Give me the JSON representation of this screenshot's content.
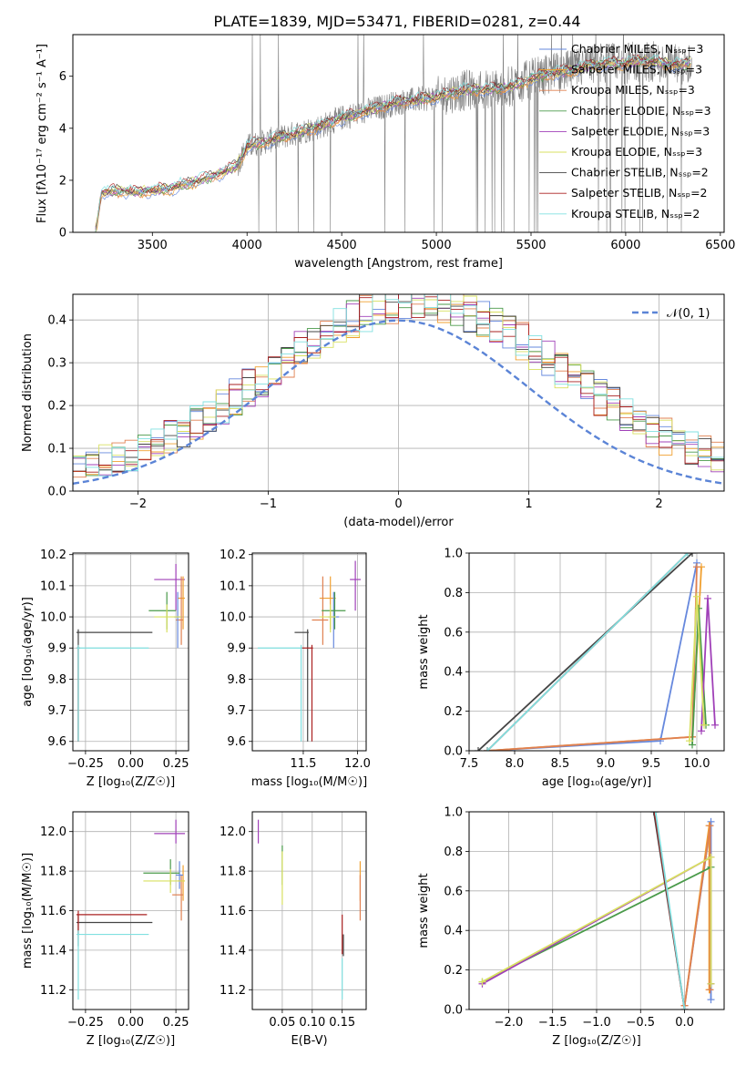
{
  "title": "PLATE=1839, MJD=53471, FIBERID=0281, z=0.44",
  "colors": {
    "Chabrier MILES": "#6688dd",
    "Salpeter MILES": "#f0a030",
    "Kroupa MILES": "#e08050",
    "Chabrier ELODIE": "#4a9a4a",
    "Salpeter ELODIE": "#a040b8",
    "Kroupa ELODIE": "#d8e060",
    "Chabrier STELIB": "#444444",
    "Salpeter STELIB": "#aa2020",
    "Kroupa STELIB": "#80e0e0",
    "data": "#808080",
    "normal": "#5b84d6"
  },
  "chart_data": [
    {
      "id": "spectrum",
      "type": "line",
      "xlabel": "wavelength [Angstrom, rest frame]",
      "ylabel": "Flux [f$_\\lambda$10$^{-17}$ erg cm$^{-2}$ s$^{-1}$ A$^{-1}$]",
      "ylabel_display": "Flux [fλ10⁻¹⁷ erg cm⁻² s⁻¹ A⁻¹]",
      "xlim": [
        3080,
        6520
      ],
      "ylim": [
        0,
        7.6
      ],
      "xticks": [
        3500,
        4000,
        4500,
        5000,
        5500,
        6000,
        6500
      ],
      "yticks": [
        0,
        2,
        4,
        6
      ],
      "legend": [
        "Chabrier MILES, N_SSP=3",
        "Salpeter MILES, N_SSP=3",
        "Kroupa MILES, N_SSP=3",
        "Chabrier ELODIE, N_SSP=3",
        "Salpeter ELODIE, N_SSP=3",
        "Kroupa ELODIE, N_SSP=3",
        "Chabrier STELIB, N_SSP=2",
        "Salpeter STELIB, N_SSP=2",
        "Kroupa STELIB, N_SSP=2"
      ],
      "legend_display": [
        "Chabrier MILES, Nₛₛₚ=3",
        "Salpeter MILES, Nₛₛₚ=3",
        "Kroupa MILES, Nₛₛₚ=3",
        "Chabrier ELODIE, Nₛₛₚ=3",
        "Salpeter ELODIE, Nₛₛₚ=3",
        "Kroupa ELODIE, Nₛₛₚ=3",
        "Chabrier STELIB, Nₛₛₚ=2",
        "Salpeter STELIB, Nₛₛₚ=2",
        "Kroupa STELIB, Nₛₛₚ=2"
      ],
      "legend_placement": "top-right",
      "continuum_x": [
        3200,
        3230,
        3300,
        3400,
        3500,
        3600,
        3700,
        3800,
        3900,
        3950,
        4000,
        4100,
        4200,
        4300,
        4400,
        4500,
        4600,
        4700,
        4800,
        4900,
        5000,
        5100,
        5200,
        5300,
        5400,
        5500,
        5600,
        5700,
        5800,
        5900,
        6000,
        6100,
        6200,
        6300,
        6350
      ],
      "continuum_y": [
        0.0,
        1.5,
        1.6,
        1.55,
        1.6,
        1.7,
        1.9,
        2.1,
        2.4,
        2.6,
        3.3,
        3.5,
        3.7,
        3.9,
        4.1,
        4.4,
        4.6,
        4.8,
        5.0,
        5.1,
        5.2,
        5.4,
        5.5,
        5.5,
        5.6,
        5.9,
        6.1,
        6.2,
        6.4,
        6.5,
        6.5,
        6.6,
        6.5,
        6.4,
        6.6
      ],
      "data_range_x": [
        3200,
        6350
      ]
    },
    {
      "id": "residuals",
      "type": "line",
      "xlabel": "(data-model)/error",
      "ylabel": "Normed distribution",
      "xlim": [
        -2.5,
        2.5
      ],
      "ylim": [
        0,
        0.46
      ],
      "xticks": [
        -2,
        -1,
        0,
        1,
        2
      ],
      "xtick_labels": [
        "−2",
        "−1",
        "0",
        "1",
        "2"
      ],
      "yticks": [
        0.0,
        0.1,
        0.2,
        0.3,
        0.4
      ],
      "ytick_labels": [
        "0.0",
        "0.1",
        "0.2",
        "0.3",
        "0.4"
      ],
      "grid": true,
      "legend": [
        "𝒩(0, 1)"
      ],
      "legend_placement": "top-right",
      "bin_width": 0.1,
      "normal_mean": 0,
      "normal_sigma": 1
    },
    {
      "id": "age_vs_Z",
      "type": "scatter",
      "xlabel": "Z [log₁₀(Z/Z☉)]",
      "ylabel": "age  [log₁₀(age/yr)]",
      "xlim": [
        -0.32,
        0.32
      ],
      "ylim": [
        9.57,
        10.205
      ],
      "xticks": [
        -0.25,
        0.0,
        0.25
      ],
      "xtick_labels": [
        "−0.25",
        "0.00",
        "0.25"
      ],
      "yticks": [
        9.6,
        9.7,
        9.8,
        9.9,
        10.0,
        10.1,
        10.2
      ],
      "ytick_labels": [
        "9.6",
        "9.7",
        "9.8",
        "9.9",
        "10.0",
        "10.1",
        "10.2"
      ],
      "grid": true,
      "points": [
        {
          "series": "Salpeter ELODIE",
          "x": 0.25,
          "y": 10.12,
          "xerr": [
            0.12,
            0.05
          ],
          "yerr": [
            0.1,
            0.05
          ]
        },
        {
          "series": "Salpeter MILES",
          "x": 0.29,
          "y": 10.06,
          "xerr": [
            0.03,
            0.01
          ],
          "yerr": [
            0.1,
            0.07
          ]
        },
        {
          "series": "Kroupa MILES",
          "x": 0.28,
          "y": 9.99,
          "xerr": [
            0.03,
            0.01
          ],
          "yerr": [
            0.08,
            0.14
          ]
        },
        {
          "series": "Chabrier MILES",
          "x": 0.26,
          "y": 10.0,
          "xerr": [
            0.02,
            0.02
          ],
          "yerr": [
            0.1,
            0.08
          ]
        },
        {
          "series": "Chabrier ELODIE",
          "x": 0.2,
          "y": 10.02,
          "xerr": [
            0.1,
            0.05
          ],
          "yerr": [
            0.06,
            0.06
          ]
        },
        {
          "series": "Kroupa ELODIE",
          "x": 0.2,
          "y": 10.0,
          "xerr": [
            0.07,
            0.08
          ],
          "yerr": [
            0.05,
            0.04
          ]
        },
        {
          "series": "Chabrier STELIB",
          "x": -0.29,
          "y": 9.95,
          "xerr": [
            0.01,
            0.41
          ],
          "yerr": [
            0.35,
            0.01
          ]
        },
        {
          "series": "Salpeter STELIB",
          "x": -0.29,
          "y": 9.9,
          "xerr": [
            0.01,
            0.01
          ],
          "yerr": [
            0.3,
            0.01
          ]
        },
        {
          "series": "Kroupa STELIB",
          "x": -0.29,
          "y": 9.9,
          "xerr": [
            0.01,
            0.39
          ],
          "yerr": [
            0.3,
            0.01
          ]
        }
      ]
    },
    {
      "id": "age_vs_mass",
      "type": "scatter",
      "xlabel": "mass [log₁₀(M/M☉)]",
      "ylabel": "",
      "xlim": [
        11.03,
        12.08
      ],
      "ylim": [
        9.57,
        10.205
      ],
      "xticks": [
        11.5,
        12.0
      ],
      "xtick_labels": [
        "11.5",
        "12.0"
      ],
      "yticks": [
        9.6,
        9.7,
        9.8,
        9.9,
        10.0,
        10.1,
        10.2
      ],
      "ytick_labels": [
        "9.6",
        "9.7",
        "9.8",
        "9.9",
        "10.0",
        "10.1",
        "10.2"
      ],
      "grid": true,
      "points": [
        {
          "series": "Salpeter ELODIE",
          "x": 11.98,
          "y": 10.12,
          "xerr": [
            0.05,
            0.05
          ],
          "yerr": [
            0.1,
            0.06
          ]
        },
        {
          "series": "Salpeter MILES",
          "x": 11.75,
          "y": 10.06,
          "xerr": [
            0.1,
            0.05
          ],
          "yerr": [
            0.1,
            0.07
          ]
        },
        {
          "series": "Kroupa MILES",
          "x": 11.68,
          "y": 9.99,
          "xerr": [
            0.1,
            0.05
          ],
          "yerr": [
            0.08,
            0.14
          ]
        },
        {
          "series": "Chabrier MILES",
          "x": 11.78,
          "y": 10.0,
          "xerr": [
            0.05,
            0.05
          ],
          "yerr": [
            0.1,
            0.08
          ]
        },
        {
          "series": "Chabrier ELODIE",
          "x": 11.79,
          "y": 10.02,
          "xerr": [
            0.12,
            0.1
          ],
          "yerr": [
            0.06,
            0.06
          ]
        },
        {
          "series": "Kroupa ELODIE",
          "x": 11.75,
          "y": 10.0,
          "xerr": [
            0.1,
            0.05
          ],
          "yerr": [
            0.05,
            0.04
          ]
        },
        {
          "series": "Chabrier STELIB",
          "x": 11.54,
          "y": 9.95,
          "xerr": [
            0.12,
            0.01
          ],
          "yerr": [
            0.35,
            0.01
          ]
        },
        {
          "series": "Salpeter STELIB",
          "x": 11.58,
          "y": 9.9,
          "xerr": [
            0.1,
            0.01
          ],
          "yerr": [
            0.3,
            0.01
          ]
        },
        {
          "series": "Kroupa STELIB",
          "x": 11.48,
          "y": 9.9,
          "xerr": [
            0.4,
            0.01
          ],
          "yerr": [
            0.3,
            0.01
          ]
        }
      ]
    },
    {
      "id": "weight_vs_age",
      "type": "line",
      "xlabel": "age  [log₁₀(age/yr)]",
      "ylabel": "mass weight",
      "xlim": [
        7.5,
        10.3
      ],
      "ylim": [
        0,
        1.0
      ],
      "xticks": [
        7.5,
        8.0,
        8.5,
        9.0,
        9.5,
        10.0
      ],
      "xtick_labels": [
        "7.5",
        "8.0",
        "8.5",
        "9.0",
        "9.5",
        "10.0"
      ],
      "yticks": [
        0.0,
        0.2,
        0.4,
        0.6,
        0.8,
        1.0
      ],
      "ytick_labels": [
        "0.0",
        "0.2",
        "0.4",
        "0.6",
        "0.8",
        "1.0"
      ],
      "grid": true,
      "series": [
        {
          "name": "Chabrier MILES",
          "x": [
            7.7,
            9.6,
            10.0
          ],
          "y": [
            0.0,
            0.05,
            0.95
          ]
        },
        {
          "name": "Salpeter MILES",
          "x": [
            7.7,
            9.95,
            10.05
          ],
          "y": [
            0.0,
            0.07,
            0.93
          ]
        },
        {
          "name": "Kroupa MILES",
          "x": [
            7.7,
            9.95,
            10.0
          ],
          "y": [
            0.0,
            0.07,
            0.93
          ]
        },
        {
          "name": "Chabrier ELODIE",
          "x": [
            9.95,
            10.02,
            10.1
          ],
          "y": [
            0.03,
            0.72,
            0.13
          ]
        },
        {
          "name": "Salpeter ELODIE",
          "x": [
            10.05,
            10.12,
            10.2
          ],
          "y": [
            0.1,
            0.77,
            0.13
          ]
        },
        {
          "name": "Kroupa ELODIE",
          "x": [
            9.92,
            10.0,
            10.08
          ],
          "y": [
            0.05,
            0.78,
            0.13
          ]
        },
        {
          "name": "Chabrier STELIB",
          "x": [
            7.6,
            9.95
          ],
          "y": [
            0.0,
            1.0
          ]
        },
        {
          "name": "Salpeter STELIB",
          "x": [
            7.7,
            9.9
          ],
          "y": [
            0.0,
            1.0
          ]
        },
        {
          "name": "Kroupa STELIB",
          "x": [
            7.7,
            9.9
          ],
          "y": [
            0.0,
            1.0
          ]
        }
      ]
    },
    {
      "id": "mass_vs_Z",
      "type": "scatter",
      "xlabel": "Z [log₁₀(Z/Z☉)]",
      "ylabel": "mass [log₁₀(M/M☉)]",
      "xlim": [
        -0.32,
        0.32
      ],
      "ylim": [
        11.1,
        12.1
      ],
      "xticks": [
        -0.25,
        0.0,
        0.25
      ],
      "xtick_labels": [
        "−0.25",
        "0.00",
        "0.25"
      ],
      "yticks": [
        11.2,
        11.4,
        11.6,
        11.8,
        12.0
      ],
      "ytick_labels": [
        "11.2",
        "11.4",
        "11.6",
        "11.8",
        "12.0"
      ],
      "grid": true,
      "points": [
        {
          "series": "Salpeter ELODIE",
          "x": 0.25,
          "y": 11.99,
          "xerr": [
            0.12,
            0.05
          ],
          "yerr": [
            0.05,
            0.07
          ]
        },
        {
          "series": "Salpeter MILES",
          "x": 0.29,
          "y": 11.75,
          "xerr": [
            0.03,
            0.01
          ],
          "yerr": [
            0.1,
            0.08
          ]
        },
        {
          "series": "Kroupa MILES",
          "x": 0.28,
          "y": 11.68,
          "xerr": [
            0.05,
            0.01
          ],
          "yerr": [
            0.13,
            0.1
          ]
        },
        {
          "series": "Chabrier MILES",
          "x": 0.27,
          "y": 11.78,
          "xerr": [
            0.02,
            0.02
          ],
          "yerr": [
            0.07,
            0.07
          ]
        },
        {
          "series": "Chabrier ELODIE",
          "x": 0.22,
          "y": 11.79,
          "xerr": [
            0.15,
            0.05
          ],
          "yerr": [
            0.06,
            0.07
          ]
        },
        {
          "series": "Kroupa ELODIE",
          "x": 0.22,
          "y": 11.75,
          "xerr": [
            0.15,
            0.08
          ],
          "yerr": [
            0.06,
            0.06
          ]
        },
        {
          "series": "Chabrier STELIB",
          "x": -0.29,
          "y": 11.54,
          "xerr": [
            0.01,
            0.41
          ],
          "yerr": [
            0.12,
            0.04
          ]
        },
        {
          "series": "Salpeter STELIB",
          "x": -0.29,
          "y": 11.58,
          "xerr": [
            0.01,
            0.38
          ],
          "yerr": [
            0.1,
            0.02
          ]
        },
        {
          "series": "Kroupa STELIB",
          "x": -0.29,
          "y": 11.48,
          "xerr": [
            0.01,
            0.39
          ],
          "yerr": [
            0.33,
            0.02
          ]
        }
      ]
    },
    {
      "id": "mass_vs_EBV",
      "type": "scatter",
      "xlabel": "E(B-V)",
      "ylabel": "",
      "xlim": [
        0.0,
        0.19
      ],
      "ylim": [
        11.1,
        12.1
      ],
      "xticks": [
        0.05,
        0.1,
        0.15
      ],
      "xtick_labels": [
        "0.05",
        "0.10",
        "0.15"
      ],
      "yticks": [
        11.2,
        11.4,
        11.6,
        11.8,
        12.0
      ],
      "ytick_labels": [
        "11.2",
        "11.4",
        "11.6",
        "11.8",
        "12.0"
      ],
      "grid": true,
      "points": [
        {
          "series": "Salpeter ELODIE",
          "x": 0.01,
          "y": 11.99,
          "yerr": [
            0.05,
            0.07
          ]
        },
        {
          "series": "Chabrier ELODIE",
          "x": 0.05,
          "y": 11.79,
          "yerr": [
            0.06,
            0.14
          ]
        },
        {
          "series": "Kroupa ELODIE",
          "x": 0.05,
          "y": 11.75,
          "yerr": [
            0.12,
            0.15
          ]
        },
        {
          "series": "Salpeter MILES",
          "x": 0.18,
          "y": 11.75,
          "yerr": [
            0.1,
            0.1
          ]
        },
        {
          "series": "Kroupa MILES",
          "x": 0.18,
          "y": 11.68,
          "yerr": [
            0.13,
            0.1
          ]
        },
        {
          "series": "Chabrier STELIB",
          "x": 0.152,
          "y": 11.42,
          "yerr": [
            0.05,
            0.06
          ]
        },
        {
          "series": "Salpeter STELIB",
          "x": 0.15,
          "y": 11.5,
          "yerr": [
            0.12,
            0.08
          ]
        },
        {
          "series": "Kroupa STELIB",
          "x": 0.15,
          "y": 11.3,
          "yerr": [
            0.15,
            0.06
          ]
        }
      ]
    },
    {
      "id": "weight_vs_Z",
      "type": "line",
      "xlabel": "Z [log₁₀(Z/Z☉)]",
      "ylabel": "mass weight",
      "xlim": [
        -2.45,
        0.45
      ],
      "ylim": [
        0,
        1.0
      ],
      "xticks": [
        -2.0,
        -1.5,
        -1.0,
        -0.5,
        0.0
      ],
      "xtick_labels": [
        "−2.0",
        "−1.5",
        "−1.0",
        "−0.5",
        "0.0"
      ],
      "yticks": [
        0.0,
        0.2,
        0.4,
        0.6,
        0.8,
        1.0
      ],
      "ytick_labels": [
        "0.0",
        "0.2",
        "0.4",
        "0.6",
        "0.8",
        "1.0"
      ],
      "grid": true,
      "series": [
        {
          "name": "Chabrier MILES",
          "x": [
            0.0,
            0.3,
            0.3
          ],
          "y": [
            0.02,
            0.95,
            0.05
          ]
        },
        {
          "name": "Salpeter MILES",
          "x": [
            0.0,
            0.28,
            0.28
          ],
          "y": [
            0.02,
            0.93,
            0.1
          ]
        },
        {
          "name": "Kroupa MILES",
          "x": [
            0.0,
            0.29,
            0.29
          ],
          "y": [
            0.02,
            0.93,
            0.1
          ]
        },
        {
          "name": "Chabrier ELODIE",
          "x": [
            -2.3,
            0.3,
            0.3
          ],
          "y": [
            0.14,
            0.72,
            0.13
          ]
        },
        {
          "name": "Salpeter ELODIE",
          "x": [
            -2.3,
            0.3,
            0.3
          ],
          "y": [
            0.13,
            0.77,
            0.13
          ]
        },
        {
          "name": "Kroupa ELODIE",
          "x": [
            -2.3,
            0.3,
            0.3
          ],
          "y": [
            0.14,
            0.77,
            0.13
          ]
        },
        {
          "name": "Chabrier STELIB",
          "x": [
            -0.35,
            0.0
          ],
          "y": [
            1.0,
            0.0
          ]
        },
        {
          "name": "Salpeter STELIB",
          "x": [
            -0.34,
            0.0
          ],
          "y": [
            1.0,
            0.0
          ]
        },
        {
          "name": "Kroupa STELIB",
          "x": [
            -0.33,
            0.0
          ],
          "y": [
            1.0,
            0.0
          ]
        }
      ]
    }
  ]
}
